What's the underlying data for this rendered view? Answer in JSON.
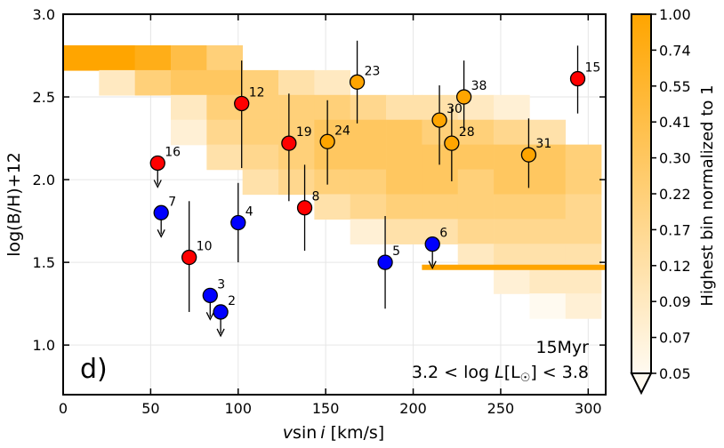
{
  "chart_data": {
    "type": "scatter",
    "panel_label": "d)",
    "xlabel": "vsin i [km/s]",
    "xlabel_parts": {
      "v": "v",
      "sin": "sin",
      "i": "i",
      "unit": "[km/s]"
    },
    "ylabel": "log(B/H)+12",
    "xlim": [
      0,
      310
    ],
    "ylim": [
      0.7,
      3.0
    ],
    "xticks": [
      0,
      50,
      100,
      150,
      200,
      250,
      300
    ],
    "yticks": [
      1.0,
      1.5,
      2.0,
      2.5,
      3.0
    ],
    "xtick_labels": [
      "0",
      "50",
      "100",
      "150",
      "200",
      "250",
      "300"
    ],
    "ytick_labels": [
      "1.0",
      "1.5",
      "2.0",
      "2.5",
      "3.0"
    ],
    "annotation_age": "15Myr",
    "annotation_lum": {
      "lhs": "3.2 < log ",
      "L": "L",
      "sun": "[L",
      "sun_sub": "☉",
      "rhs": "] < 3.8"
    },
    "colorbar": {
      "label": "Highest bin normalized to 1",
      "tick_labels": [
        "1.00",
        "0.74",
        "0.55",
        "0.41",
        "0.30",
        "0.22",
        "0.17",
        "0.12",
        "0.09",
        "0.07",
        "0.05"
      ],
      "color_min": "#fffaf0",
      "color_max": "#ffa500"
    },
    "heatmap": {
      "x_bin_width": 20.5,
      "y_bin_height": 0.152,
      "cells": [
        {
          "x": 0,
          "y": 2.66,
          "v": 1.0
        },
        {
          "x": 20.5,
          "y": 2.66,
          "v": 1.0
        },
        {
          "x": 41,
          "y": 2.66,
          "v": 0.74
        },
        {
          "x": 61.5,
          "y": 2.66,
          "v": 0.41
        },
        {
          "x": 82,
          "y": 2.66,
          "v": 0.22
        },
        {
          "x": 20.5,
          "y": 2.51,
          "v": 0.09
        },
        {
          "x": 41,
          "y": 2.51,
          "v": 0.22
        },
        {
          "x": 61.5,
          "y": 2.51,
          "v": 0.3
        },
        {
          "x": 82,
          "y": 2.51,
          "v": 0.3
        },
        {
          "x": 102.5,
          "y": 2.51,
          "v": 0.22
        },
        {
          "x": 123,
          "y": 2.51,
          "v": 0.12
        },
        {
          "x": 143.5,
          "y": 2.51,
          "v": 0.09
        },
        {
          "x": 61.5,
          "y": 2.36,
          "v": 0.09
        },
        {
          "x": 82,
          "y": 2.36,
          "v": 0.22
        },
        {
          "x": 102.5,
          "y": 2.36,
          "v": 0.22
        },
        {
          "x": 123,
          "y": 2.36,
          "v": 0.22
        },
        {
          "x": 143.5,
          "y": 2.36,
          "v": 0.22
        },
        {
          "x": 164,
          "y": 2.36,
          "v": 0.17
        },
        {
          "x": 184.5,
          "y": 2.36,
          "v": 0.12
        },
        {
          "x": 205,
          "y": 2.36,
          "v": 0.12
        },
        {
          "x": 225.5,
          "y": 2.36,
          "v": 0.09
        },
        {
          "x": 246,
          "y": 2.36,
          "v": 0.07
        },
        {
          "x": 61.5,
          "y": 2.21,
          "v": 0.07
        },
        {
          "x": 82,
          "y": 2.21,
          "v": 0.17
        },
        {
          "x": 102.5,
          "y": 2.21,
          "v": 0.22
        },
        {
          "x": 123,
          "y": 2.21,
          "v": 0.22
        },
        {
          "x": 143.5,
          "y": 2.21,
          "v": 0.3
        },
        {
          "x": 164,
          "y": 2.21,
          "v": 0.3
        },
        {
          "x": 184.5,
          "y": 2.21,
          "v": 0.3
        },
        {
          "x": 205,
          "y": 2.21,
          "v": 0.22
        },
        {
          "x": 225.5,
          "y": 2.21,
          "v": 0.22
        },
        {
          "x": 246,
          "y": 2.21,
          "v": 0.17
        },
        {
          "x": 266.5,
          "y": 2.21,
          "v": 0.12
        },
        {
          "x": 82,
          "y": 2.06,
          "v": 0.12
        },
        {
          "x": 102.5,
          "y": 2.06,
          "v": 0.17
        },
        {
          "x": 123,
          "y": 2.06,
          "v": 0.22
        },
        {
          "x": 143.5,
          "y": 2.06,
          "v": 0.3
        },
        {
          "x": 164,
          "y": 2.06,
          "v": 0.3
        },
        {
          "x": 184.5,
          "y": 2.06,
          "v": 0.3
        },
        {
          "x": 205,
          "y": 2.06,
          "v": 0.3
        },
        {
          "x": 225.5,
          "y": 2.06,
          "v": 0.3
        },
        {
          "x": 246,
          "y": 2.06,
          "v": 0.3
        },
        {
          "x": 266.5,
          "y": 2.06,
          "v": 0.3
        },
        {
          "x": 287,
          "y": 2.06,
          "v": 0.22
        },
        {
          "x": 102.5,
          "y": 1.91,
          "v": 0.12
        },
        {
          "x": 123,
          "y": 1.91,
          "v": 0.17
        },
        {
          "x": 143.5,
          "y": 1.91,
          "v": 0.22
        },
        {
          "x": 164,
          "y": 1.91,
          "v": 0.22
        },
        {
          "x": 184.5,
          "y": 1.91,
          "v": 0.3
        },
        {
          "x": 205,
          "y": 1.91,
          "v": 0.3
        },
        {
          "x": 225.5,
          "y": 1.91,
          "v": 0.22
        },
        {
          "x": 246,
          "y": 1.91,
          "v": 0.3
        },
        {
          "x": 266.5,
          "y": 1.91,
          "v": 0.3
        },
        {
          "x": 287,
          "y": 1.91,
          "v": 0.22
        },
        {
          "x": 143.5,
          "y": 1.76,
          "v": 0.12
        },
        {
          "x": 164,
          "y": 1.76,
          "v": 0.17
        },
        {
          "x": 184.5,
          "y": 1.76,
          "v": 0.22
        },
        {
          "x": 205,
          "y": 1.76,
          "v": 0.22
        },
        {
          "x": 225.5,
          "y": 1.76,
          "v": 0.22
        },
        {
          "x": 246,
          "y": 1.76,
          "v": 0.22
        },
        {
          "x": 266.5,
          "y": 1.76,
          "v": 0.22
        },
        {
          "x": 287,
          "y": 1.76,
          "v": 0.17
        },
        {
          "x": 164,
          "y": 1.61,
          "v": 0.07
        },
        {
          "x": 184.5,
          "y": 1.61,
          "v": 0.12
        },
        {
          "x": 205,
          "y": 1.61,
          "v": 0.12
        },
        {
          "x": 225.5,
          "y": 1.61,
          "v": 0.17
        },
        {
          "x": 246,
          "y": 1.61,
          "v": 0.17
        },
        {
          "x": 266.5,
          "y": 1.61,
          "v": 0.17
        },
        {
          "x": 287,
          "y": 1.61,
          "v": 0.17
        },
        {
          "x": 225.5,
          "y": 1.46,
          "v": 0.09
        },
        {
          "x": 246,
          "y": 1.46,
          "v": 0.12
        },
        {
          "x": 266.5,
          "y": 1.46,
          "v": 0.12
        },
        {
          "x": 287,
          "y": 1.46,
          "v": 0.12
        },
        {
          "x": 246,
          "y": 1.31,
          "v": 0.07
        },
        {
          "x": 266.5,
          "y": 1.31,
          "v": 0.09
        },
        {
          "x": 287,
          "y": 1.31,
          "v": 0.09
        },
        {
          "x": 266.5,
          "y": 1.16,
          "v": 0.05
        },
        {
          "x": 287,
          "y": 1.16,
          "v": 0.07
        }
      ]
    },
    "threshold_line": {
      "x_start": 205,
      "x_end": 310,
      "y": 1.47,
      "color": "#ffa500"
    },
    "series": [
      {
        "name": "red",
        "color": "#ff0000",
        "points": [
          {
            "label": "16",
            "x": 54,
            "y": 2.1,
            "upper_limit": true
          },
          {
            "label": "10",
            "x": 72,
            "y": 1.53,
            "err_low": 1.2,
            "err_high": 1.87
          },
          {
            "label": "12",
            "x": 102,
            "y": 2.46,
            "err_low": 2.07,
            "err_high": 2.72
          },
          {
            "label": "19",
            "x": 129,
            "y": 2.22,
            "err_low": 1.87,
            "err_high": 2.52
          },
          {
            "label": "8",
            "x": 138,
            "y": 1.83,
            "err_low": 1.57,
            "err_high": 2.09
          },
          {
            "label": "15",
            "x": 294,
            "y": 2.61,
            "err_low": 2.4,
            "err_high": 2.81
          }
        ]
      },
      {
        "name": "blue",
        "color": "#0000ff",
        "points": [
          {
            "label": "7",
            "x": 56,
            "y": 1.8,
            "upper_limit": true
          },
          {
            "label": "3",
            "x": 84,
            "y": 1.3,
            "upper_limit": true
          },
          {
            "label": "2",
            "x": 90,
            "y": 1.2,
            "upper_limit": true
          },
          {
            "label": "4",
            "x": 100,
            "y": 1.74,
            "err_low": 1.5,
            "err_high": 1.98
          },
          {
            "label": "5",
            "x": 184,
            "y": 1.5,
            "err_low": 1.22,
            "err_high": 1.78
          },
          {
            "label": "6",
            "x": 211,
            "y": 1.61,
            "upper_limit": true
          }
        ]
      },
      {
        "name": "orange",
        "color": "#ffa500",
        "points": [
          {
            "label": "23",
            "x": 168,
            "y": 2.59,
            "err_low": 2.34,
            "err_high": 2.84
          },
          {
            "label": "24",
            "x": 151,
            "y": 2.23,
            "err_low": 1.97,
            "err_high": 2.48
          },
          {
            "label": "30",
            "x": 215,
            "y": 2.36,
            "err_low": 2.09,
            "err_high": 2.57
          },
          {
            "label": "28",
            "x": 222,
            "y": 2.22,
            "err_low": 1.99,
            "err_high": 2.43
          },
          {
            "label": "38",
            "x": 229,
            "y": 2.5,
            "err_low": 2.3,
            "err_high": 2.72
          },
          {
            "label": "31",
            "x": 266,
            "y": 2.15,
            "err_low": 1.95,
            "err_high": 2.37
          }
        ]
      }
    ]
  }
}
